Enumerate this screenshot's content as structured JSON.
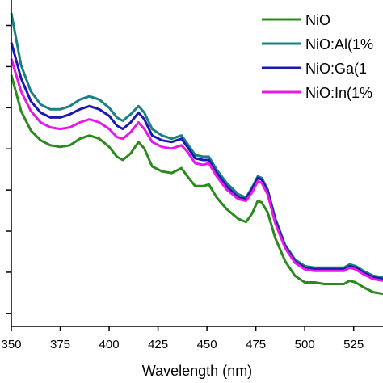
{
  "chart_data": {
    "type": "line",
    "xlabel": "Wavelength (nm)",
    "ylabel": "",
    "xlim": [
      350,
      540
    ],
    "ylim": [
      0,
      1
    ],
    "x_ticks": [
      "350",
      "375",
      "400",
      "425",
      "450",
      "475",
      "500",
      "525"
    ],
    "x_tick_values": [
      350,
      375,
      400,
      425,
      450,
      475,
      500,
      525
    ],
    "y_tick_values": [
      0.04,
      0.166,
      0.292,
      0.418,
      0.544,
      0.67,
      0.796,
      0.922
    ],
    "legend_position": "top-right",
    "series": [
      {
        "name": "NiO",
        "color": "#2b8a1e",
        "points": [
          [
            350,
            0.77
          ],
          [
            355,
            0.66
          ],
          [
            360,
            0.6
          ],
          [
            365,
            0.57
          ],
          [
            370,
            0.555
          ],
          [
            375,
            0.55
          ],
          [
            380,
            0.555
          ],
          [
            385,
            0.575
          ],
          [
            390,
            0.585
          ],
          [
            395,
            0.575
          ],
          [
            400,
            0.55
          ],
          [
            404,
            0.52
          ],
          [
            407,
            0.51
          ],
          [
            411,
            0.53
          ],
          [
            415,
            0.565
          ],
          [
            418,
            0.545
          ],
          [
            422,
            0.49
          ],
          [
            427,
            0.475
          ],
          [
            432,
            0.47
          ],
          [
            437,
            0.485
          ],
          [
            440,
            0.46
          ],
          [
            444,
            0.43
          ],
          [
            448,
            0.43
          ],
          [
            451,
            0.435
          ],
          [
            455,
            0.395
          ],
          [
            460,
            0.36
          ],
          [
            466,
            0.33
          ],
          [
            470,
            0.32
          ],
          [
            473,
            0.345
          ],
          [
            476,
            0.385
          ],
          [
            478,
            0.38
          ],
          [
            481,
            0.35
          ],
          [
            485,
            0.27
          ],
          [
            490,
            0.2
          ],
          [
            495,
            0.155
          ],
          [
            500,
            0.135
          ],
          [
            505,
            0.135
          ],
          [
            510,
            0.13
          ],
          [
            515,
            0.13
          ],
          [
            520,
            0.13
          ],
          [
            523,
            0.14
          ],
          [
            526,
            0.135
          ],
          [
            530,
            0.12
          ],
          [
            535,
            0.105
          ],
          [
            540,
            0.1
          ]
        ]
      },
      {
        "name": "NiO:Al(1%",
        "color": "#1b8080",
        "points": [
          [
            350,
            0.96
          ],
          [
            355,
            0.8
          ],
          [
            360,
            0.72
          ],
          [
            365,
            0.68
          ],
          [
            370,
            0.665
          ],
          [
            375,
            0.665
          ],
          [
            380,
            0.675
          ],
          [
            385,
            0.695
          ],
          [
            390,
            0.705
          ],
          [
            395,
            0.695
          ],
          [
            400,
            0.67
          ],
          [
            404,
            0.64
          ],
          [
            407,
            0.63
          ],
          [
            411,
            0.65
          ],
          [
            415,
            0.675
          ],
          [
            418,
            0.655
          ],
          [
            422,
            0.605
          ],
          [
            427,
            0.585
          ],
          [
            432,
            0.575
          ],
          [
            437,
            0.585
          ],
          [
            440,
            0.56
          ],
          [
            444,
            0.525
          ],
          [
            448,
            0.52
          ],
          [
            451,
            0.52
          ],
          [
            455,
            0.48
          ],
          [
            460,
            0.44
          ],
          [
            466,
            0.405
          ],
          [
            470,
            0.395
          ],
          [
            473,
            0.425
          ],
          [
            476,
            0.46
          ],
          [
            478,
            0.455
          ],
          [
            481,
            0.42
          ],
          [
            485,
            0.33
          ],
          [
            490,
            0.25
          ],
          [
            495,
            0.205
          ],
          [
            500,
            0.185
          ],
          [
            505,
            0.18
          ],
          [
            510,
            0.18
          ],
          [
            515,
            0.18
          ],
          [
            520,
            0.18
          ],
          [
            523,
            0.19
          ],
          [
            526,
            0.185
          ],
          [
            530,
            0.17
          ],
          [
            535,
            0.155
          ],
          [
            540,
            0.15
          ]
        ]
      },
      {
        "name": "NiO:Ga(1",
        "color": "#1a1ab0",
        "points": [
          [
            350,
            0.87
          ],
          [
            355,
            0.76
          ],
          [
            360,
            0.69
          ],
          [
            365,
            0.655
          ],
          [
            370,
            0.64
          ],
          [
            375,
            0.64
          ],
          [
            380,
            0.65
          ],
          [
            385,
            0.665
          ],
          [
            390,
            0.675
          ],
          [
            395,
            0.665
          ],
          [
            400,
            0.645
          ],
          [
            404,
            0.615
          ],
          [
            407,
            0.605
          ],
          [
            411,
            0.625
          ],
          [
            415,
            0.655
          ],
          [
            418,
            0.635
          ],
          [
            422,
            0.585
          ],
          [
            427,
            0.57
          ],
          [
            432,
            0.565
          ],
          [
            437,
            0.575
          ],
          [
            440,
            0.55
          ],
          [
            444,
            0.515
          ],
          [
            448,
            0.51
          ],
          [
            451,
            0.51
          ],
          [
            455,
            0.47
          ],
          [
            460,
            0.43
          ],
          [
            466,
            0.395
          ],
          [
            470,
            0.39
          ],
          [
            473,
            0.42
          ],
          [
            476,
            0.455
          ],
          [
            478,
            0.45
          ],
          [
            481,
            0.415
          ],
          [
            485,
            0.325
          ],
          [
            490,
            0.245
          ],
          [
            495,
            0.2
          ],
          [
            500,
            0.18
          ],
          [
            505,
            0.175
          ],
          [
            510,
            0.175
          ],
          [
            515,
            0.175
          ],
          [
            520,
            0.175
          ],
          [
            523,
            0.185
          ],
          [
            526,
            0.18
          ],
          [
            530,
            0.165
          ],
          [
            535,
            0.15
          ],
          [
            540,
            0.145
          ]
        ]
      },
      {
        "name": "NiO:In(1%",
        "color": "#e619e6",
        "points": [
          [
            350,
            0.82
          ],
          [
            355,
            0.72
          ],
          [
            360,
            0.66
          ],
          [
            365,
            0.625
          ],
          [
            370,
            0.61
          ],
          [
            375,
            0.605
          ],
          [
            380,
            0.61
          ],
          [
            385,
            0.625
          ],
          [
            390,
            0.635
          ],
          [
            395,
            0.625
          ],
          [
            400,
            0.605
          ],
          [
            404,
            0.58
          ],
          [
            407,
            0.575
          ],
          [
            411,
            0.595
          ],
          [
            415,
            0.625
          ],
          [
            418,
            0.605
          ],
          [
            422,
            0.565
          ],
          [
            427,
            0.55
          ],
          [
            432,
            0.545
          ],
          [
            437,
            0.555
          ],
          [
            440,
            0.535
          ],
          [
            444,
            0.5
          ],
          [
            448,
            0.495
          ],
          [
            451,
            0.5
          ],
          [
            455,
            0.46
          ],
          [
            460,
            0.42
          ],
          [
            466,
            0.39
          ],
          [
            470,
            0.385
          ],
          [
            473,
            0.41
          ],
          [
            476,
            0.445
          ],
          [
            478,
            0.44
          ],
          [
            481,
            0.405
          ],
          [
            485,
            0.315
          ],
          [
            490,
            0.24
          ],
          [
            495,
            0.195
          ],
          [
            500,
            0.175
          ],
          [
            505,
            0.17
          ],
          [
            510,
            0.17
          ],
          [
            515,
            0.17
          ],
          [
            520,
            0.17
          ],
          [
            523,
            0.18
          ],
          [
            526,
            0.175
          ],
          [
            530,
            0.16
          ],
          [
            535,
            0.145
          ],
          [
            540,
            0.14
          ]
        ]
      }
    ]
  }
}
